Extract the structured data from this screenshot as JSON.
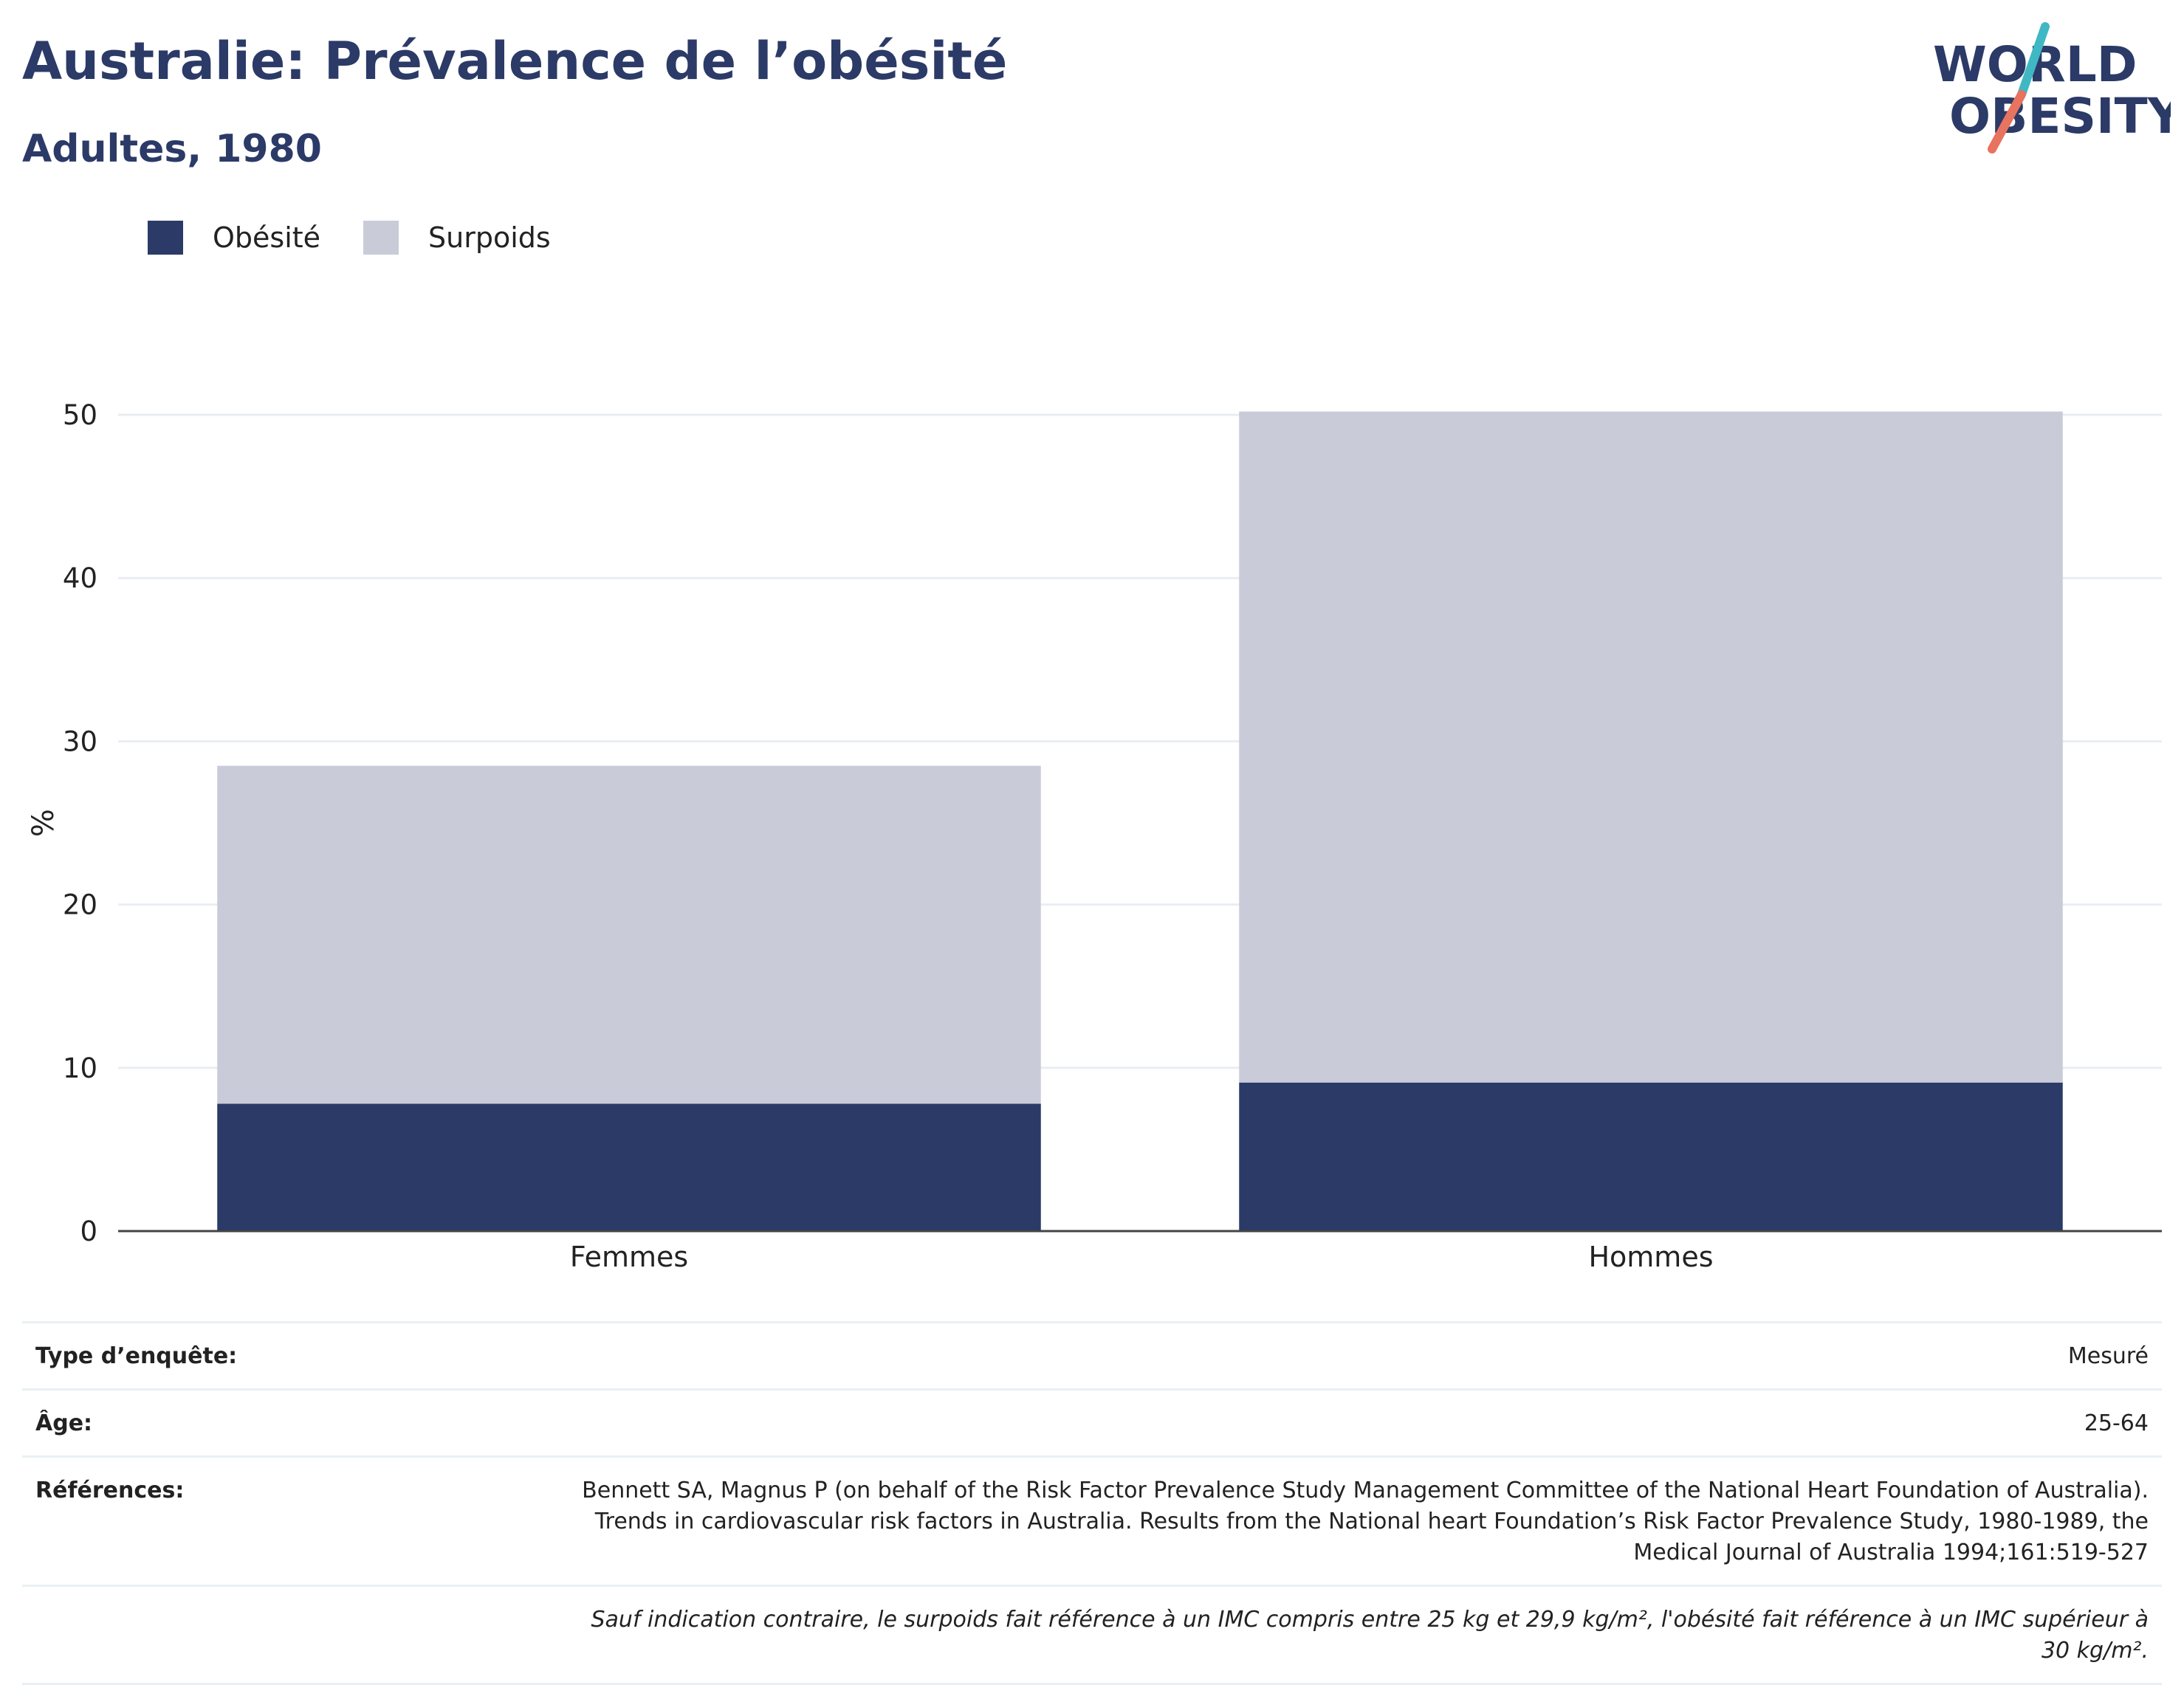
{
  "header": {
    "title": "Australie: Prévalence de l’obésité",
    "subtitle": "Adultes, 1980"
  },
  "logo": {
    "line1": "WORLD",
    "line2": "OBESITY",
    "accent_colors": [
      "#3fb8c4",
      "#e8735e"
    ],
    "text_color": "#2b3a67"
  },
  "legend": {
    "items": [
      {
        "label": "Obésité",
        "color": "#2b3a67"
      },
      {
        "label": "Surpoids",
        "color": "#c9ccd8"
      }
    ]
  },
  "chart_data": {
    "type": "bar",
    "stacked": true,
    "categories": [
      "Femmes",
      "Hommes"
    ],
    "series": [
      {
        "name": "Obésité",
        "values": [
          7.8,
          9.1
        ],
        "color": "#2b3a67"
      },
      {
        "name": "Surpoids",
        "values": [
          20.7,
          41.1
        ],
        "color": "#c9ccd8"
      }
    ],
    "ylabel": "%",
    "ylim": [
      0,
      50
    ],
    "yticks": [
      0,
      10,
      20,
      30,
      40,
      50
    ],
    "grid": true,
    "legend_position": "top-left"
  },
  "meta": {
    "rows": [
      {
        "label": "Type d’enquête:",
        "value": "Mesuré"
      },
      {
        "label": "Âge:",
        "value": "25-64"
      },
      {
        "label": "Références:",
        "value": "Bennett SA, Magnus P (on behalf of the Risk Factor Prevalence Study Management Committee of the National Heart Foundation of Australia). Trends in cardiovascular risk factors in Australia. Results from the National heart Foundation’s Risk Factor Prevalence Study, 1980-1989, the Medical Journal of Australia 1994;161:519-527"
      }
    ],
    "note": "Sauf indication contraire, le surpoids fait référence à un IMC compris entre 25 kg et 29,9 kg/m², l'obésité fait référence à un IMC supérieur à 30 kg/m²."
  }
}
